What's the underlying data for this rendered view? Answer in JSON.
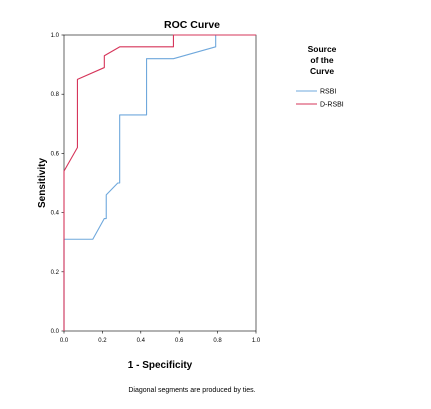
{
  "chart_data": {
    "type": "line",
    "title": "ROC Curve",
    "xlabel": "1 - Specificity",
    "ylabel": "Sensitivity",
    "xlim": [
      0.0,
      1.0
    ],
    "ylim": [
      0.0,
      1.0
    ],
    "x_ticks": [
      "0.0",
      "0.2",
      "0.4",
      "0.6",
      "0.8",
      "1.0"
    ],
    "y_ticks": [
      "0.0",
      "0.2",
      "0.4",
      "0.6",
      "0.8",
      "1.0"
    ],
    "grid": false,
    "footnote": "Diagonal segments are produced by ties.",
    "legend": {
      "title_lines": [
        "Source",
        "of the",
        "Curve"
      ],
      "placement": "right"
    },
    "series": [
      {
        "name": "RSBI",
        "color": "#6fa8dc",
        "points": [
          [
            0.0,
            0.0
          ],
          [
            0.0,
            0.31
          ],
          [
            0.15,
            0.31
          ],
          [
            0.21,
            0.38
          ],
          [
            0.22,
            0.38
          ],
          [
            0.22,
            0.46
          ],
          [
            0.28,
            0.5
          ],
          [
            0.29,
            0.5
          ],
          [
            0.29,
            0.73
          ],
          [
            0.43,
            0.73
          ],
          [
            0.43,
            0.92
          ],
          [
            0.57,
            0.92
          ],
          [
            0.79,
            0.96
          ],
          [
            0.79,
            1.0
          ],
          [
            1.0,
            1.0
          ]
        ]
      },
      {
        "name": "D-RSBI",
        "color": "#d6355a",
        "points": [
          [
            0.0,
            0.0
          ],
          [
            0.0,
            0.54
          ],
          [
            0.07,
            0.62
          ],
          [
            0.07,
            0.85
          ],
          [
            0.21,
            0.89
          ],
          [
            0.21,
            0.93
          ],
          [
            0.29,
            0.96
          ],
          [
            0.57,
            0.96
          ],
          [
            0.57,
            1.0
          ],
          [
            1.0,
            1.0
          ]
        ]
      }
    ]
  }
}
